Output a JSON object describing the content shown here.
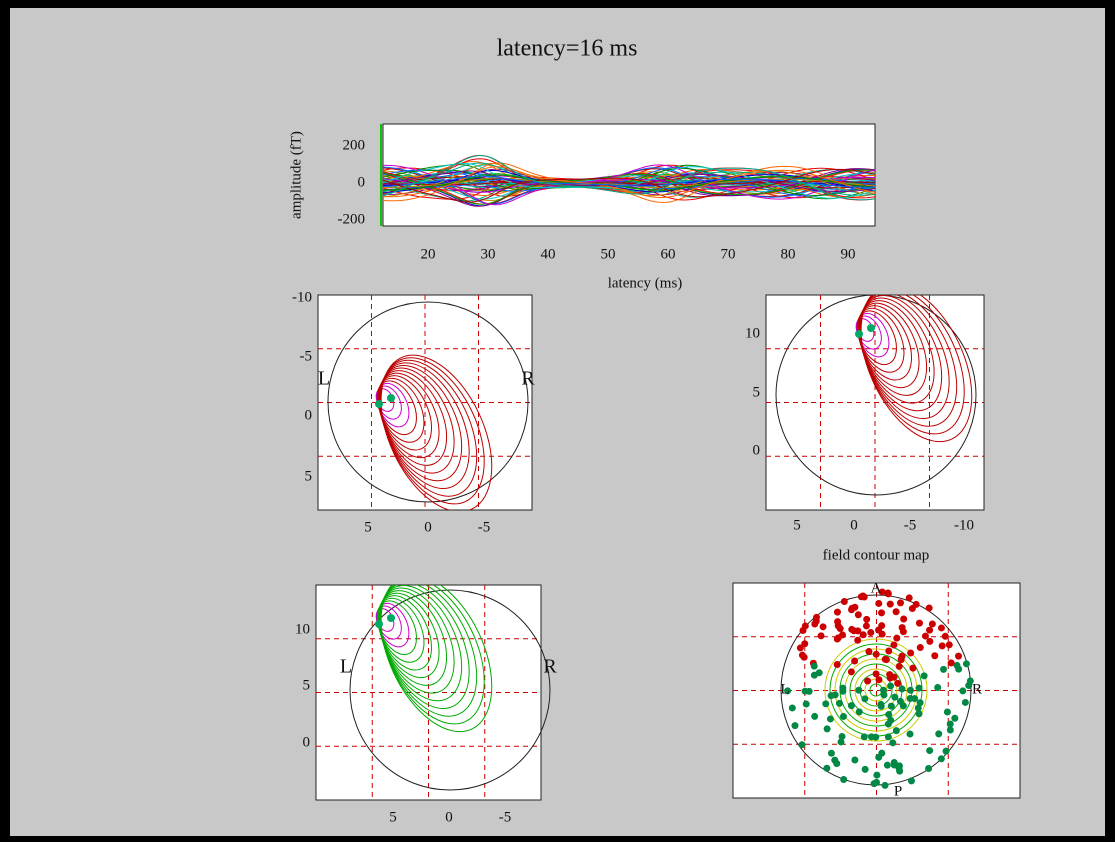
{
  "title": "latency=16 ms",
  "waveform": {
    "ylabel": "amplitude (fT)",
    "xlabel": "latency (ms)",
    "yticks": [
      "200",
      "0",
      "-200"
    ],
    "xticks": [
      "20",
      "30",
      "40",
      "50",
      "60",
      "70",
      "80",
      "90"
    ]
  },
  "panels": [
    {
      "yticks": [
        "-10",
        "-5",
        "0",
        "5"
      ],
      "xticks": [
        "5",
        "0",
        "-5"
      ],
      "labels": [
        "L",
        "R"
      ]
    },
    {
      "yticks": [
        "10",
        "5",
        "0"
      ],
      "xticks": [
        "5",
        "0",
        "-5",
        "-10"
      ],
      "xlabel": "field contour map"
    },
    {
      "yticks": [
        "10",
        "5",
        "0"
      ],
      "xticks": [
        "5",
        "0",
        "-5"
      ],
      "labels": [
        "L",
        "R"
      ]
    },
    {
      "labels": [
        "A",
        "L",
        "R",
        "P"
      ]
    }
  ]
}
